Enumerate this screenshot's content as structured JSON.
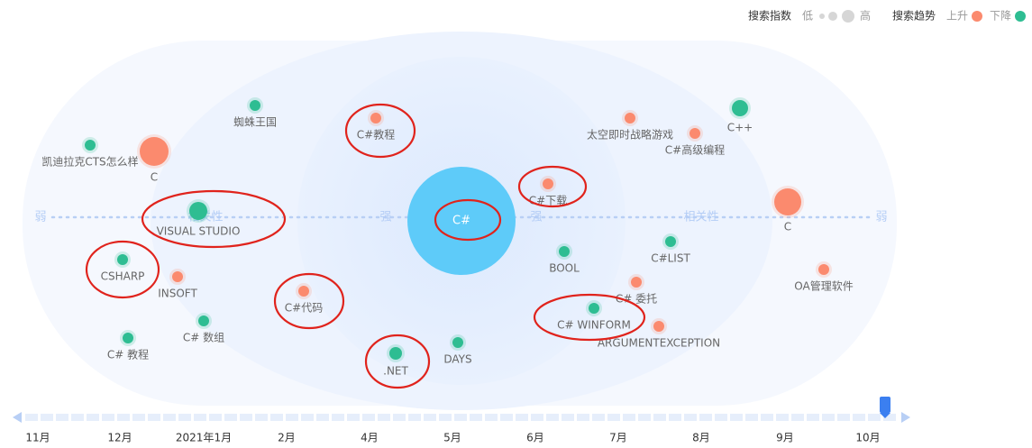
{
  "legend": {
    "index_title": "搜索指数",
    "low": "低",
    "high": "高",
    "trend_title": "搜索趋势",
    "up": "上升",
    "up_color": "#fb8a6e",
    "down": "下降",
    "down_color": "#2ebd92"
  },
  "center": {
    "label": "C#",
    "color": "#5ecbf9"
  },
  "axis_labels": [
    "弱",
    "相关性",
    "强",
    "强",
    "相关性",
    "弱"
  ],
  "nodes": [
    {
      "label": "凯迪拉克CTS怎么样",
      "color": "#2ebd92"
    },
    {
      "label": "C",
      "color": "#fb8a6e"
    },
    {
      "label": "蜘蛛王国",
      "color": "#2ebd92"
    },
    {
      "label": "C#教程",
      "color": "#fb8a6e"
    },
    {
      "label": "太空即时战略游戏",
      "color": "#fb8a6e"
    },
    {
      "label": "C#高级编程",
      "color": "#fb8a6e"
    },
    {
      "label": "C++",
      "color": "#2ebd92"
    },
    {
      "label": "VISUAL STUDIO",
      "color": "#2ebd92"
    },
    {
      "label": "C",
      "color": "#fb8a6e"
    },
    {
      "label": "C#下载",
      "color": "#fb8a6e"
    },
    {
      "label": "CSHARP",
      "color": "#2ebd92"
    },
    {
      "label": "INSOFT",
      "color": "#fb8a6e"
    },
    {
      "label": "C#代码",
      "color": "#fb8a6e"
    },
    {
      "label": "BOOL",
      "color": "#2ebd92"
    },
    {
      "label": "C#LIST",
      "color": "#2ebd92"
    },
    {
      "label": "OA管理软件",
      "color": "#fb8a6e"
    },
    {
      "label": "C# 委托",
      "color": "#fb8a6e"
    },
    {
      "label": "C# 数组",
      "color": "#2ebd92"
    },
    {
      "label": "C# WINFORM",
      "color": "#2ebd92"
    },
    {
      "label": "ARGUMENTEXCEPTION",
      "color": "#fb8a6e"
    },
    {
      "label": "C# 教程",
      "color": "#2ebd92"
    },
    {
      "label": ".NET",
      "color": "#2ebd92"
    },
    {
      "label": "DAYS",
      "color": "#2ebd92"
    }
  ],
  "timeline": [
    "11月",
    "12月",
    "2021年1月",
    "2月",
    "4月",
    "5月",
    "6月",
    "7月",
    "8月",
    "9月",
    "10月"
  ]
}
